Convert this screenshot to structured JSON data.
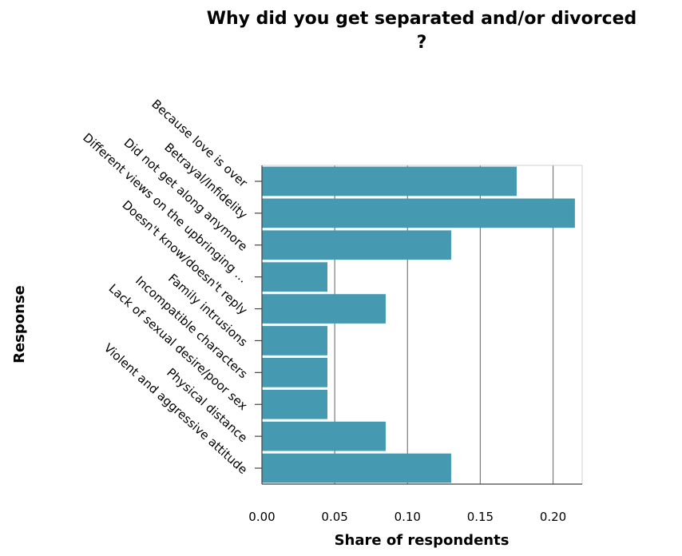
{
  "chart_data": {
    "type": "bar",
    "orientation": "horizontal",
    "title_line1": "Why did you get separated and/or divorced",
    "title_line2": "?",
    "xlabel": "Share of respondents",
    "ylabel": "Response",
    "xlim": [
      0,
      0.22
    ],
    "xticks": [
      "0.00",
      "0.05",
      "0.10",
      "0.15",
      "0.20"
    ],
    "xtick_values": [
      0,
      0.05,
      0.1,
      0.15,
      0.2
    ],
    "grid": "vertical",
    "bar_color": "#4599b0",
    "categories": [
      "Because love is over",
      "Betrayal/Infidelity",
      "Did not get along anymore",
      "Different views on the upbringing ...",
      "Doesn't know/doesn't reply",
      "Family intrusions",
      "Incompatible characters",
      "Lack of sexual desire/poor sex",
      "Physical distance",
      "Violent and aggressive attitude"
    ],
    "values": [
      0.175,
      0.215,
      0.13,
      0.045,
      0.085,
      0.045,
      0.045,
      0.045,
      0.085,
      0.13
    ]
  }
}
